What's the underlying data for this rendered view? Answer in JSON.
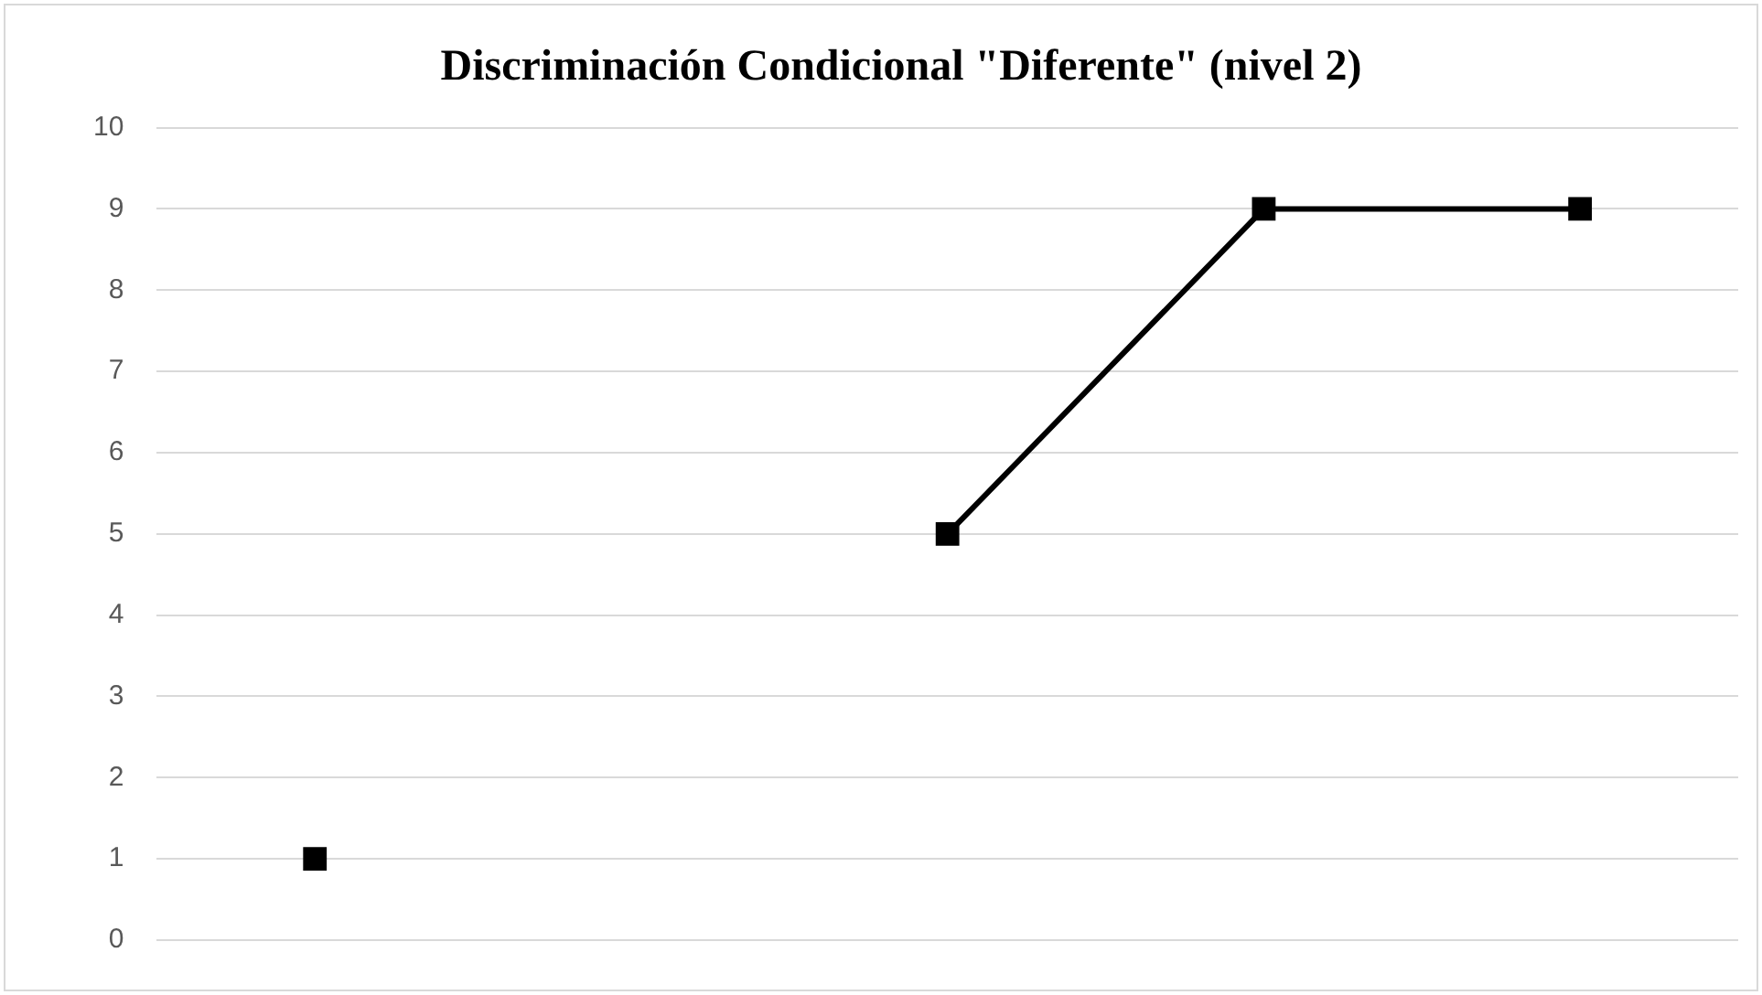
{
  "chart_data": {
    "type": "line",
    "title": "Discriminación Condicional \"Diferente\" (nivel 2)",
    "categories": [
      null,
      null,
      null,
      null,
      null
    ],
    "series": [
      {
        "color": "#000000",
        "values": [
          1,
          null,
          5,
          9,
          9
        ]
      }
    ],
    "ylim": [
      0,
      10
    ],
    "yticks": [
      0,
      1,
      2,
      3,
      4,
      5,
      6,
      7,
      8,
      9,
      10
    ],
    "grid": "y",
    "legend": false,
    "tick_labels": "y",
    "marker": "square",
    "line_style": "solid"
  }
}
